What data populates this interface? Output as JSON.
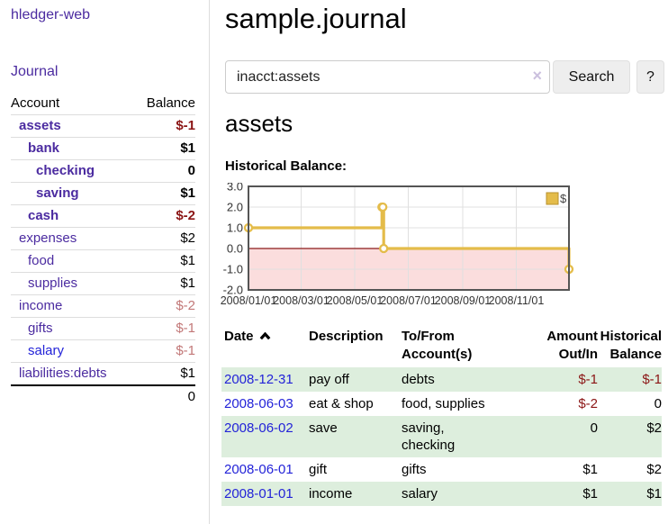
{
  "app": {
    "brand": "hledger-web"
  },
  "nav": {
    "journal": "Journal"
  },
  "sidebar": {
    "account_header": "Account",
    "balance_header": "Balance",
    "accounts": [
      {
        "name": "assets",
        "indent": 1,
        "bold": true,
        "balance": "$-1",
        "neg": "strong"
      },
      {
        "name": "bank",
        "indent": 2,
        "bold": true,
        "balance": "$1"
      },
      {
        "name": "checking",
        "indent": 3,
        "bold": true,
        "balance": "0"
      },
      {
        "name": "saving",
        "indent": 3,
        "bold": true,
        "balance": "$1"
      },
      {
        "name": "cash",
        "indent": 2,
        "bold": true,
        "balance": "$-2",
        "neg": "strong"
      },
      {
        "name": "expenses",
        "indent": 1,
        "balance": "$2"
      },
      {
        "name": "food",
        "indent": 2,
        "balance": "$1"
      },
      {
        "name": "supplies",
        "indent": 2,
        "balance": "$1"
      },
      {
        "name": "income",
        "indent": 1,
        "balance": "$-2",
        "neg": "soft"
      },
      {
        "name": "gifts",
        "indent": 2,
        "balance": "$-1",
        "neg": "soft"
      },
      {
        "name": "salary",
        "indent": 2,
        "balance": "$-1",
        "neg": "soft",
        "blue": true
      },
      {
        "name": "liabilities:debts",
        "indent": 1,
        "balance": "$1"
      }
    ],
    "total": "0"
  },
  "header": {
    "title": "sample.journal"
  },
  "search": {
    "value": "inacct:assets",
    "clear_icon": "×",
    "search_button": "Search",
    "help_button": "?"
  },
  "account_page": {
    "title": "assets",
    "chart_label": "Historical Balance:"
  },
  "chart_data": {
    "type": "line",
    "title": "Historical Balance",
    "step": true,
    "series": [
      {
        "name": "$",
        "color": "#e4bc4a",
        "points": [
          [
            "2008-01-01",
            1
          ],
          [
            "2008-06-01",
            2
          ],
          [
            "2008-06-02",
            2
          ],
          [
            "2008-06-03",
            0
          ],
          [
            "2008-12-31",
            -1
          ]
        ]
      }
    ],
    "xlim": [
      "2008-01-01",
      "2008-12-31"
    ],
    "ylim": [
      -2,
      3
    ],
    "x_ticks": [
      {
        "date": "2008-01-01",
        "label": "2008/01/01"
      },
      {
        "date": "2008-03-01",
        "label": "2008/03/01"
      },
      {
        "date": "2008-05-01",
        "label": "2008/05/01"
      },
      {
        "date": "2008-07-01",
        "label": "2008/07/01"
      },
      {
        "date": "2008-09-01",
        "label": "2008/09/01"
      },
      {
        "date": "2008-11-01",
        "label": "2008/11/01"
      }
    ],
    "y_ticks": [
      {
        "v": 3,
        "label": "3.0"
      },
      {
        "v": 2,
        "label": "2.0"
      },
      {
        "v": 1,
        "label": "1.0"
      },
      {
        "v": 0,
        "label": "0.0"
      },
      {
        "v": -1,
        "label": "-1.0"
      },
      {
        "v": -2,
        "label": "-2.0"
      }
    ],
    "grid": true,
    "legend_position": "top-right",
    "negative_fill": "#fbdddd",
    "zero_line_color": "#8b1a1a",
    "border_color": "#555555",
    "grid_color": "#e0e0e0"
  },
  "register": {
    "columns": [
      "Date",
      "Description",
      "To/From Account(s)",
      "Amount Out/In",
      "Historical Balance"
    ],
    "rows": [
      {
        "date": "2008-12-31",
        "description": "pay off",
        "accounts": "debts",
        "amount": "$-1",
        "balance": "$-1"
      },
      {
        "date": "2008-06-03",
        "description": "eat & shop",
        "accounts": "food, supplies",
        "amount": "$-2",
        "balance": "0"
      },
      {
        "date": "2008-06-02",
        "description": "save",
        "accounts": "saving, checking",
        "amount": "0",
        "balance": "$2"
      },
      {
        "date": "2008-06-01",
        "description": "gift",
        "accounts": "gifts",
        "amount": "$1",
        "balance": "$2"
      },
      {
        "date": "2008-01-01",
        "description": "income",
        "accounts": "salary",
        "amount": "$1",
        "balance": "$1"
      }
    ]
  },
  "colors": {
    "link_purple": "#4b2ba0",
    "link_blue": "#2323d8",
    "negative_strong": "#8b1515",
    "negative_soft": "#c27878",
    "row_green": "#ddeedd",
    "chart_line": "#e4bc4a",
    "chart_negative_fill": "#fbdddd",
    "chart_zero_line": "#8b1a1a"
  }
}
